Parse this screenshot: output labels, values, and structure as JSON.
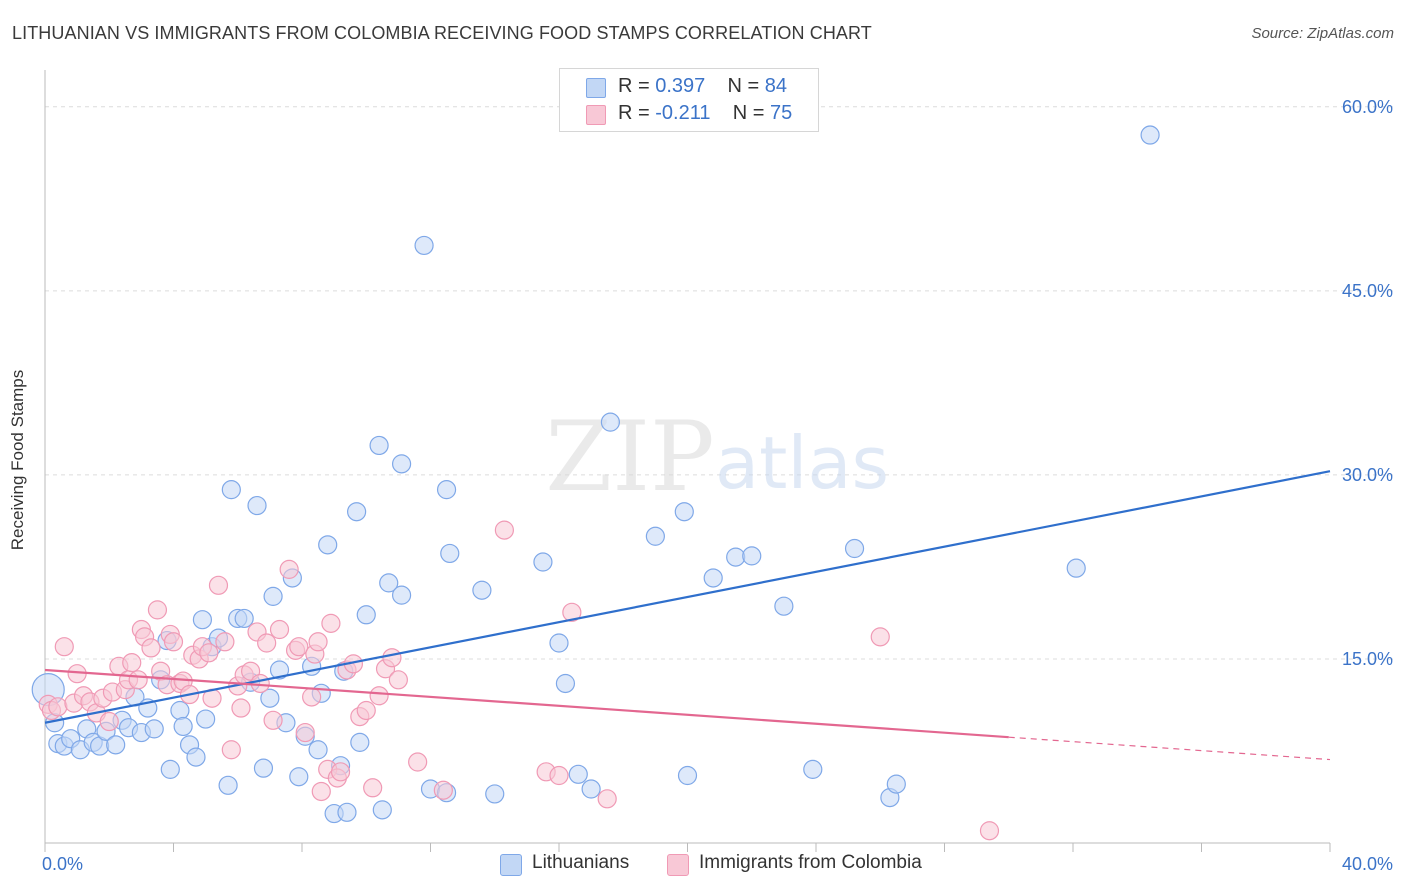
{
  "header": {
    "title": "LITHUANIAN VS IMMIGRANTS FROM COLOMBIA RECEIVING FOOD STAMPS CORRELATION CHART",
    "source": "Source: ZipAtlas.com"
  },
  "watermark": {
    "zip": "ZIP",
    "atlas": "atlas"
  },
  "legend": {
    "r_label": "R =",
    "n_label": "N =",
    "rows": [
      {
        "r": "0.397",
        "n": "84"
      },
      {
        "r": "-0.211",
        "n": "75"
      }
    ]
  },
  "chart_data": {
    "type": "scatter",
    "title": "LITHUANIAN VS IMMIGRANTS FROM COLOMBIA RECEIVING FOOD STAMPS CORRELATION CHART",
    "xlabel": "",
    "ylabel": "Receiving Food Stamps",
    "xlim": [
      0,
      40
    ],
    "ylim": [
      0,
      63
    ],
    "x_tick_labels": [
      "0.0%",
      "40.0%"
    ],
    "y_ticks": [
      15,
      30,
      45,
      60
    ],
    "y_tick_labels": [
      "15.0%",
      "30.0%",
      "45.0%",
      "60.0%"
    ],
    "grid": true,
    "legend_placement": "top-center",
    "series": [
      {
        "name": "Lithuanians",
        "color": "#7fa8e8",
        "fill": "#c2d7f5",
        "trend_color": "#2f6fcc",
        "r": 0.397,
        "n": 84,
        "trend": {
          "x0": 0,
          "y0": 9.8,
          "x1": 40,
          "y1": 30.3
        },
        "points": [
          [
            0.1,
            12.5
          ],
          [
            0.3,
            9.8
          ],
          [
            0.4,
            8.1
          ],
          [
            0.6,
            7.9
          ],
          [
            0.8,
            8.5
          ],
          [
            1.1,
            7.6
          ],
          [
            1.3,
            9.3
          ],
          [
            1.5,
            8.2
          ],
          [
            1.7,
            7.9
          ],
          [
            1.9,
            9.1
          ],
          [
            2.2,
            8.0
          ],
          [
            2.4,
            10.0
          ],
          [
            2.6,
            9.4
          ],
          [
            2.8,
            11.9
          ],
          [
            3.0,
            9.0
          ],
          [
            3.2,
            11.0
          ],
          [
            3.4,
            9.3
          ],
          [
            3.6,
            13.3
          ],
          [
            3.8,
            16.5
          ],
          [
            3.9,
            6.0
          ],
          [
            4.2,
            10.8
          ],
          [
            4.3,
            9.5
          ],
          [
            4.5,
            8.0
          ],
          [
            4.7,
            7.0
          ],
          [
            4.9,
            18.2
          ],
          [
            5.0,
            10.1
          ],
          [
            5.2,
            16.0
          ],
          [
            5.4,
            16.7
          ],
          [
            5.7,
            4.7
          ],
          [
            5.8,
            28.8
          ],
          [
            6.0,
            18.3
          ],
          [
            6.2,
            18.3
          ],
          [
            6.4,
            13.1
          ],
          [
            6.6,
            27.5
          ],
          [
            6.8,
            6.1
          ],
          [
            7.0,
            11.8
          ],
          [
            7.1,
            20.1
          ],
          [
            7.3,
            14.1
          ],
          [
            7.5,
            9.8
          ],
          [
            7.7,
            21.6
          ],
          [
            7.9,
            5.4
          ],
          [
            8.1,
            8.7
          ],
          [
            8.3,
            14.4
          ],
          [
            8.5,
            7.6
          ],
          [
            8.6,
            12.2
          ],
          [
            8.8,
            24.3
          ],
          [
            9.0,
            2.4
          ],
          [
            9.2,
            6.3
          ],
          [
            9.3,
            14.0
          ],
          [
            9.4,
            2.5
          ],
          [
            9.7,
            27.0
          ],
          [
            9.8,
            8.2
          ],
          [
            10.0,
            18.6
          ],
          [
            10.4,
            32.4
          ],
          [
            10.5,
            2.7
          ],
          [
            10.7,
            21.2
          ],
          [
            11.1,
            30.9
          ],
          [
            11.1,
            20.2
          ],
          [
            11.8,
            48.7
          ],
          [
            12.0,
            4.4
          ],
          [
            12.5,
            28.8
          ],
          [
            12.5,
            4.1
          ],
          [
            12.6,
            23.6
          ],
          [
            13.6,
            20.6
          ],
          [
            14.0,
            4.0
          ],
          [
            15.5,
            22.9
          ],
          [
            16.0,
            16.3
          ],
          [
            16.2,
            13.0
          ],
          [
            16.6,
            5.6
          ],
          [
            17.0,
            4.4
          ],
          [
            17.6,
            34.3
          ],
          [
            19.0,
            25.0
          ],
          [
            19.9,
            27.0
          ],
          [
            20.0,
            5.5
          ],
          [
            20.8,
            21.6
          ],
          [
            21.5,
            23.3
          ],
          [
            22.0,
            23.4
          ],
          [
            23.0,
            19.3
          ],
          [
            23.9,
            6.0
          ],
          [
            25.2,
            24.0
          ],
          [
            26.3,
            3.7
          ],
          [
            26.5,
            4.8
          ],
          [
            32.1,
            22.4
          ],
          [
            34.4,
            57.7
          ]
        ]
      },
      {
        "name": "Immigrants from Colombia",
        "color": "#f09ab5",
        "fill": "#f8c8d6",
        "trend_color": "#e36790",
        "r": -0.211,
        "n": 75,
        "trend": {
          "x0": 0,
          "y0": 14.1,
          "x1": 40,
          "y1": 6.8
        },
        "points": [
          [
            0.1,
            11.3
          ],
          [
            0.2,
            10.8
          ],
          [
            0.4,
            11.1
          ],
          [
            0.6,
            16.0
          ],
          [
            0.9,
            11.4
          ],
          [
            1.0,
            13.8
          ],
          [
            1.2,
            12.0
          ],
          [
            1.4,
            11.5
          ],
          [
            1.6,
            10.6
          ],
          [
            1.8,
            11.8
          ],
          [
            2.0,
            9.9
          ],
          [
            2.1,
            12.3
          ],
          [
            2.3,
            14.4
          ],
          [
            2.5,
            12.5
          ],
          [
            2.6,
            13.3
          ],
          [
            2.7,
            14.7
          ],
          [
            2.9,
            13.3
          ],
          [
            3.0,
            17.4
          ],
          [
            3.1,
            16.8
          ],
          [
            3.3,
            15.9
          ],
          [
            3.5,
            19.0
          ],
          [
            3.6,
            14.0
          ],
          [
            3.8,
            12.9
          ],
          [
            3.9,
            17.0
          ],
          [
            4.0,
            16.4
          ],
          [
            4.2,
            13.0
          ],
          [
            4.3,
            13.2
          ],
          [
            4.5,
            12.1
          ],
          [
            4.6,
            15.3
          ],
          [
            4.8,
            15.0
          ],
          [
            4.9,
            16.0
          ],
          [
            5.1,
            15.5
          ],
          [
            5.2,
            11.8
          ],
          [
            5.4,
            21.0
          ],
          [
            5.6,
            16.4
          ],
          [
            5.8,
            7.6
          ],
          [
            6.0,
            12.8
          ],
          [
            6.1,
            11.0
          ],
          [
            6.2,
            13.7
          ],
          [
            6.4,
            14.0
          ],
          [
            6.6,
            17.2
          ],
          [
            6.7,
            13.0
          ],
          [
            6.9,
            16.3
          ],
          [
            7.1,
            10.0
          ],
          [
            7.3,
            17.4
          ],
          [
            7.6,
            22.3
          ],
          [
            7.8,
            15.7
          ],
          [
            7.9,
            16.0
          ],
          [
            8.1,
            9.0
          ],
          [
            8.3,
            11.9
          ],
          [
            8.4,
            15.4
          ],
          [
            8.5,
            16.4
          ],
          [
            8.6,
            4.2
          ],
          [
            8.8,
            6.0
          ],
          [
            8.9,
            17.9
          ],
          [
            9.1,
            5.3
          ],
          [
            9.2,
            5.8
          ],
          [
            9.4,
            14.1
          ],
          [
            9.6,
            14.6
          ],
          [
            9.8,
            10.3
          ],
          [
            10.0,
            10.8
          ],
          [
            10.2,
            4.5
          ],
          [
            10.4,
            12.0
          ],
          [
            10.6,
            14.2
          ],
          [
            10.8,
            15.1
          ],
          [
            11.0,
            13.3
          ],
          [
            11.6,
            6.6
          ],
          [
            12.4,
            4.3
          ],
          [
            14.3,
            25.5
          ],
          [
            15.6,
            5.8
          ],
          [
            16.0,
            5.5
          ],
          [
            16.4,
            18.8
          ],
          [
            17.5,
            3.6
          ],
          [
            26.0,
            16.8
          ],
          [
            29.4,
            1.0
          ]
        ]
      }
    ]
  }
}
